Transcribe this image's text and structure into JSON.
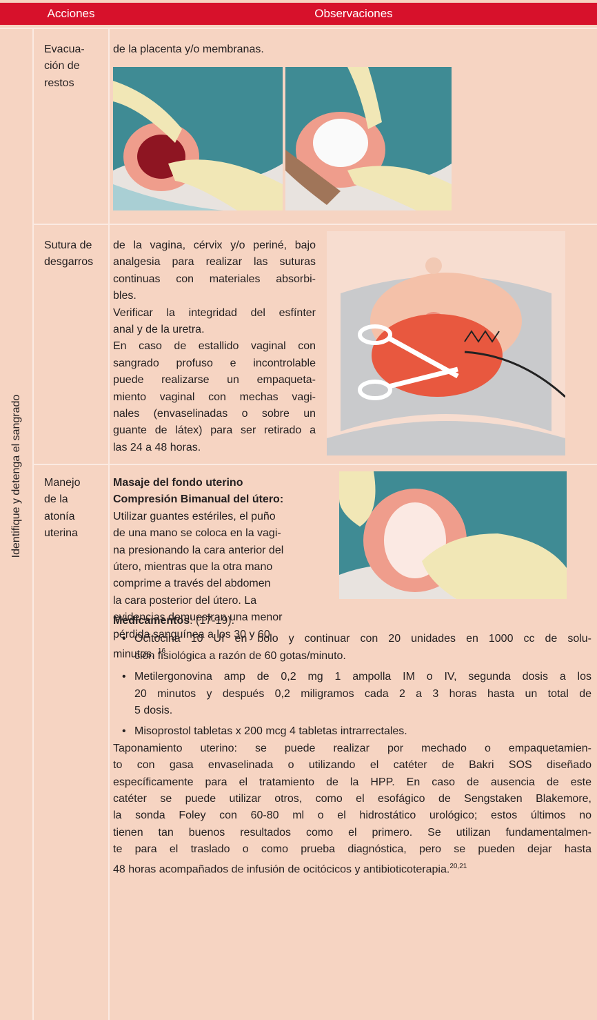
{
  "header": {
    "actions": "Acciones",
    "observations": "Observaciones"
  },
  "section_label": "Identifique y detenga el sangrado",
  "rows": [
    {
      "action": [
        "Evacua-",
        "ción de",
        "restos"
      ],
      "paragraphs": [
        [
          "de la placenta y/o membranas."
        ]
      ]
    },
    {
      "action": [
        "Sutura de",
        "desgarros"
      ],
      "paragraphs": [
        [
          "de la vagina, cérvix y/o periné, bajo",
          "analgesia para realizar las suturas",
          "continuas con materiales absorbi-",
          "bles."
        ],
        [
          "Verificar  la integridad del esfínter",
          "anal y de la uretra."
        ],
        [
          "En caso de estallido vaginal con",
          "sangrado profuso e incontrolable",
          "puede realizarse un empaqueta-",
          "miento vaginal con mechas vagi-",
          "nales (envaselinadas o sobre un",
          "guante de látex) para ser retirado a",
          "las 24 a 48 horas."
        ]
      ]
    },
    {
      "action": [
        "Manejo",
        "de la",
        "atonía",
        "uterina"
      ],
      "headings": [
        "Masaje del fondo uterino",
        "Compresión Bimanual del útero:"
      ],
      "paragraphs": [
        [
          "Utilizar guantes estériles, el puño",
          "de una mano se coloca en la vagi-",
          "na presionando la cara anterior del",
          "útero, mientras que la otra mano",
          "comprime a través del abdomen",
          "la cara posterior del útero. La",
          "evidencias demuestran una menor",
          "pérdida sanguínea a los 30 y 60",
          "minutos."
        ]
      ],
      "note": "16",
      "medications": {
        "heading": "Medicamentos",
        "refs": ": (17-19).",
        "items": [
          [
            "Ocitocina 10 UI en bolo y continuar con 20 unidades en 1000 cc de solu-",
            "ción fisiológica a razón de 60 gotas/minuto."
          ],
          [
            "Metilergonovina amp de 0,2 mg 1 ampolla IM o IV, segunda dosis a los",
            "20 minutos y después 0,2 miligramos cada 2 a 3 horas hasta un total de",
            "5 dosis."
          ],
          [
            "Misoprostol tabletas x 200 mcg 4 tabletas intrarrectales."
          ]
        ]
      },
      "closing": {
        "lines": [
          "Taponamiento uterino: se puede realizar por mechado o empaquetamien-",
          "to con gasa envaselinada o utilizando el catéter de Bakri SOS diseñado",
          "específicamente para el tratamiento de la HPP. En caso de ausencia de este",
          "catéter se puede utilizar otros, como el esofágico de Sengstaken Blakemore,",
          "la sonda Foley con 60-80 ml o el hidrostático urológico; estos últimos no",
          "tienen tan buenos resultados como el primero. Se utilizan fundamentalmen-",
          "te para el traslado o como prueba diagnóstica, pero se pueden dejar hasta",
          "48 horas acompañados de infusión de ocitócicos y antibioticoterapia."
        ],
        "note": "20,21"
      }
    }
  ]
}
